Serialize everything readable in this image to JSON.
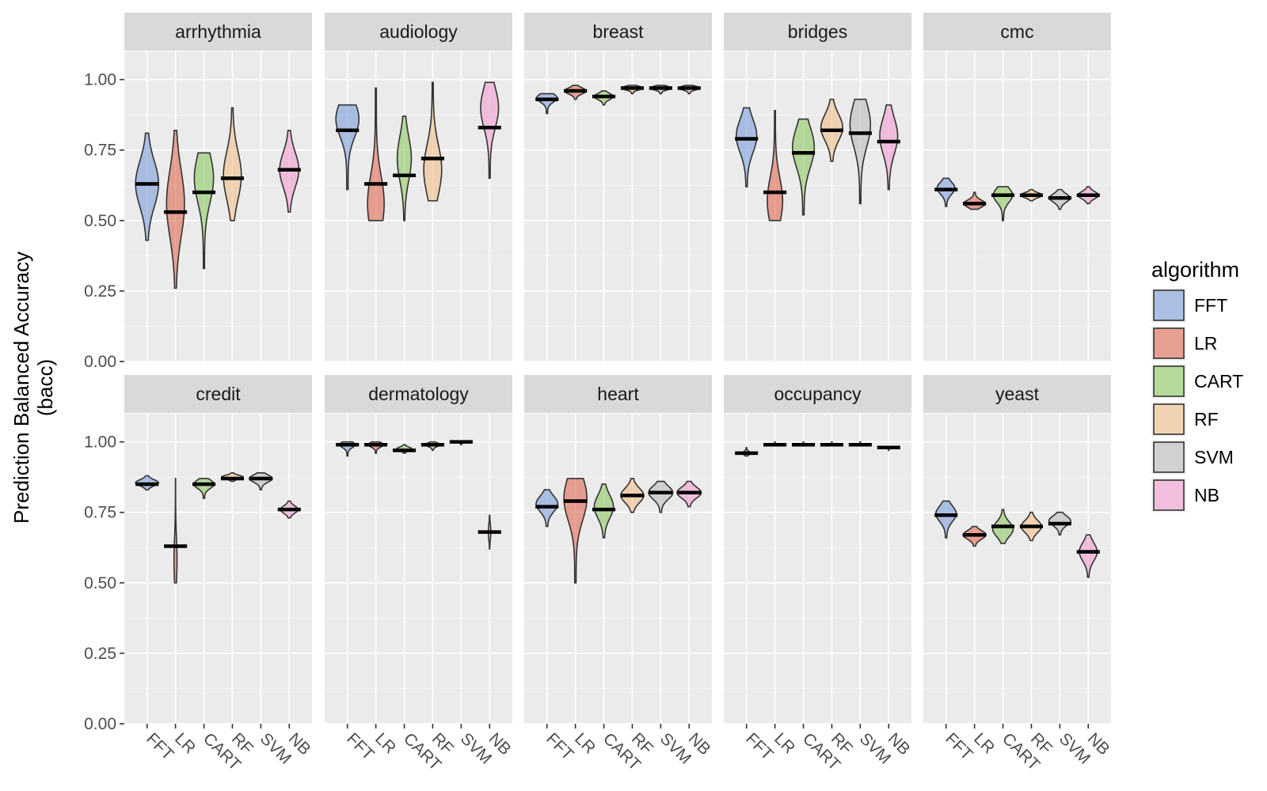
{
  "chart_data": {
    "type": "violin",
    "ylabel_line1": "Prediction Balanced Accuracy",
    "ylabel_line2": "(bacc)",
    "ylim": [
      0,
      1.1
    ],
    "yticks": [
      "0.00",
      "0.25",
      "0.50",
      "0.75",
      "1.00"
    ],
    "ytick_values": [
      0,
      0.25,
      0.5,
      0.75,
      1.0
    ],
    "categories": [
      "FFT",
      "LR",
      "CART",
      "RF",
      "SVM",
      "NB"
    ],
    "legend": {
      "title": "algorithm",
      "entries": [
        "FFT",
        "LR",
        "CART",
        "RF",
        "SVM",
        "NB"
      ],
      "colors": [
        "#7f9fdc",
        "#e06c55",
        "#8fc964",
        "#f0c08e",
        "#bdbdbd",
        "#f0a0d0"
      ]
    },
    "panels": [
      {
        "title": "arrhythmia",
        "series": [
          {
            "algorithm": "FFT",
            "min": 0.43,
            "max": 0.81,
            "median": 0.63,
            "peak": 0.63,
            "width": 0.9
          },
          {
            "algorithm": "LR",
            "min": 0.26,
            "max": 0.82,
            "median": 0.53,
            "peak": 0.56,
            "width": 0.7
          },
          {
            "algorithm": "CART",
            "min": 0.33,
            "max": 0.74,
            "median": 0.6,
            "peak": 0.65,
            "width": 0.75
          },
          {
            "algorithm": "RF",
            "min": 0.5,
            "max": 0.9,
            "median": 0.65,
            "peak": 0.66,
            "width": 0.7
          },
          {
            "algorithm": "NB",
            "min": 0.53,
            "max": 0.82,
            "median": 0.68,
            "peak": 0.68,
            "width": 0.75
          }
        ]
      },
      {
        "title": "audiology",
        "series": [
          {
            "algorithm": "FFT",
            "min": 0.61,
            "max": 0.91,
            "median": 0.82,
            "peak": 0.86,
            "width": 0.9
          },
          {
            "algorithm": "LR",
            "min": 0.5,
            "max": 0.97,
            "median": 0.63,
            "peak": 0.56,
            "width": 0.65
          },
          {
            "algorithm": "CART",
            "min": 0.5,
            "max": 0.87,
            "median": 0.66,
            "peak": 0.72,
            "width": 0.55
          },
          {
            "algorithm": "RF",
            "min": 0.57,
            "max": 0.99,
            "median": 0.72,
            "peak": 0.68,
            "width": 0.7
          },
          {
            "algorithm": "NB",
            "min": 0.65,
            "max": 0.99,
            "median": 0.83,
            "peak": 0.9,
            "width": 0.7
          }
        ]
      },
      {
        "title": "breast",
        "series": [
          {
            "algorithm": "FFT",
            "min": 0.88,
            "max": 0.95,
            "median": 0.93,
            "peak": 0.935,
            "width": 0.8
          },
          {
            "algorithm": "LR",
            "min": 0.93,
            "max": 0.98,
            "median": 0.96,
            "peak": 0.96,
            "width": 0.85
          },
          {
            "algorithm": "CART",
            "min": 0.91,
            "max": 0.96,
            "median": 0.94,
            "peak": 0.94,
            "width": 0.75
          },
          {
            "algorithm": "RF",
            "min": 0.95,
            "max": 0.98,
            "median": 0.97,
            "peak": 0.97,
            "width": 0.85
          },
          {
            "algorithm": "SVM",
            "min": 0.95,
            "max": 0.98,
            "median": 0.97,
            "peak": 0.97,
            "width": 0.85
          },
          {
            "algorithm": "NB",
            "min": 0.95,
            "max": 0.98,
            "median": 0.97,
            "peak": 0.97,
            "width": 0.85
          }
        ]
      },
      {
        "title": "bridges",
        "series": [
          {
            "algorithm": "FFT",
            "min": 0.62,
            "max": 0.9,
            "median": 0.79,
            "peak": 0.8,
            "width": 0.8
          },
          {
            "algorithm": "LR",
            "min": 0.5,
            "max": 0.89,
            "median": 0.6,
            "peak": 0.57,
            "width": 0.6
          },
          {
            "algorithm": "CART",
            "min": 0.52,
            "max": 0.86,
            "median": 0.74,
            "peak": 0.76,
            "width": 0.85
          },
          {
            "algorithm": "RF",
            "min": 0.71,
            "max": 0.93,
            "median": 0.82,
            "peak": 0.83,
            "width": 0.85
          },
          {
            "algorithm": "SVM",
            "min": 0.56,
            "max": 0.93,
            "median": 0.81,
            "peak": 0.84,
            "width": 0.8
          },
          {
            "algorithm": "NB",
            "min": 0.61,
            "max": 0.91,
            "median": 0.78,
            "peak": 0.8,
            "width": 0.7
          }
        ]
      },
      {
        "title": "cmc",
        "series": [
          {
            "algorithm": "FFT",
            "min": 0.55,
            "max": 0.65,
            "median": 0.61,
            "peak": 0.615,
            "width": 0.7
          },
          {
            "algorithm": "LR",
            "min": 0.54,
            "max": 0.6,
            "median": 0.56,
            "peak": 0.56,
            "width": 0.85
          },
          {
            "algorithm": "CART",
            "min": 0.5,
            "max": 0.62,
            "median": 0.59,
            "peak": 0.59,
            "width": 0.75
          },
          {
            "algorithm": "RF",
            "min": 0.57,
            "max": 0.61,
            "median": 0.59,
            "peak": 0.59,
            "width": 0.85
          },
          {
            "algorithm": "SVM",
            "min": 0.54,
            "max": 0.61,
            "median": 0.58,
            "peak": 0.58,
            "width": 0.8
          },
          {
            "algorithm": "NB",
            "min": 0.56,
            "max": 0.62,
            "median": 0.59,
            "peak": 0.59,
            "width": 0.8
          }
        ]
      },
      {
        "title": "credit",
        "series": [
          {
            "algorithm": "FFT",
            "min": 0.83,
            "max": 0.88,
            "median": 0.85,
            "peak": 0.855,
            "width": 0.9
          },
          {
            "algorithm": "LR",
            "min": 0.5,
            "max": 0.87,
            "median": 0.63,
            "peak": 0.58,
            "width": 0.12
          },
          {
            "algorithm": "CART",
            "min": 0.8,
            "max": 0.87,
            "median": 0.85,
            "peak": 0.85,
            "width": 0.8
          },
          {
            "algorithm": "RF",
            "min": 0.86,
            "max": 0.89,
            "median": 0.87,
            "peak": 0.875,
            "width": 0.85
          },
          {
            "algorithm": "SVM",
            "min": 0.83,
            "max": 0.89,
            "median": 0.87,
            "peak": 0.87,
            "width": 0.9
          },
          {
            "algorithm": "NB",
            "min": 0.73,
            "max": 0.79,
            "median": 0.76,
            "peak": 0.76,
            "width": 0.7
          }
        ]
      },
      {
        "title": "dermatology",
        "series": [
          {
            "algorithm": "FFT",
            "min": 0.95,
            "max": 1.0,
            "median": 0.99,
            "peak": 0.99,
            "width": 0.6
          },
          {
            "algorithm": "LR",
            "min": 0.96,
            "max": 1.0,
            "median": 0.99,
            "peak": 0.99,
            "width": 0.6
          },
          {
            "algorithm": "CART",
            "min": 0.96,
            "max": 0.99,
            "median": 0.97,
            "peak": 0.975,
            "width": 0.6
          },
          {
            "algorithm": "RF",
            "min": 0.97,
            "max": 1.0,
            "median": 0.99,
            "peak": 0.99,
            "width": 0.6
          },
          {
            "algorithm": "SVM",
            "min": 0.99,
            "max": 1.0,
            "median": 1.0,
            "peak": 1.0,
            "width": 0.6
          },
          {
            "algorithm": "NB",
            "min": 0.62,
            "max": 0.74,
            "median": 0.68,
            "peak": 0.68,
            "width": 0.1
          }
        ]
      },
      {
        "title": "heart",
        "series": [
          {
            "algorithm": "FFT",
            "min": 0.7,
            "max": 0.83,
            "median": 0.77,
            "peak": 0.78,
            "width": 0.85
          },
          {
            "algorithm": "LR",
            "min": 0.5,
            "max": 0.87,
            "median": 0.79,
            "peak": 0.8,
            "width": 0.9
          },
          {
            "algorithm": "CART",
            "min": 0.66,
            "max": 0.85,
            "median": 0.76,
            "peak": 0.77,
            "width": 0.75
          },
          {
            "algorithm": "RF",
            "min": 0.75,
            "max": 0.87,
            "median": 0.81,
            "peak": 0.81,
            "width": 0.9
          },
          {
            "algorithm": "SVM",
            "min": 0.75,
            "max": 0.86,
            "median": 0.82,
            "peak": 0.82,
            "width": 0.95
          },
          {
            "algorithm": "NB",
            "min": 0.77,
            "max": 0.86,
            "median": 0.82,
            "peak": 0.82,
            "width": 0.95
          }
        ]
      },
      {
        "title": "occupancy",
        "series": [
          {
            "algorithm": "FFT",
            "min": 0.95,
            "max": 0.98,
            "median": 0.96,
            "peak": 0.96,
            "width": 0.3
          },
          {
            "algorithm": "LR",
            "min": 0.99,
            "max": 1.0,
            "median": 0.99,
            "peak": 0.99,
            "width": 0.3
          },
          {
            "algorithm": "CART",
            "min": 0.99,
            "max": 1.0,
            "median": 0.99,
            "peak": 0.99,
            "width": 0.3
          },
          {
            "algorithm": "RF",
            "min": 0.99,
            "max": 1.0,
            "median": 0.99,
            "peak": 0.99,
            "width": 0.3
          },
          {
            "algorithm": "SVM",
            "min": 0.99,
            "max": 1.0,
            "median": 0.99,
            "peak": 0.99,
            "width": 0.3
          },
          {
            "algorithm": "NB",
            "min": 0.97,
            "max": 0.98,
            "median": 0.98,
            "peak": 0.98,
            "width": 0.3
          }
        ]
      },
      {
        "title": "yeast",
        "series": [
          {
            "algorithm": "FFT",
            "min": 0.66,
            "max": 0.79,
            "median": 0.74,
            "peak": 0.745,
            "width": 0.8
          },
          {
            "algorithm": "LR",
            "min": 0.63,
            "max": 0.7,
            "median": 0.67,
            "peak": 0.67,
            "width": 0.9
          },
          {
            "algorithm": "CART",
            "min": 0.64,
            "max": 0.76,
            "median": 0.7,
            "peak": 0.69,
            "width": 0.8
          },
          {
            "algorithm": "RF",
            "min": 0.65,
            "max": 0.75,
            "median": 0.7,
            "peak": 0.7,
            "width": 0.8
          },
          {
            "algorithm": "SVM",
            "min": 0.67,
            "max": 0.75,
            "median": 0.71,
            "peak": 0.72,
            "width": 0.85
          },
          {
            "algorithm": "NB",
            "min": 0.52,
            "max": 0.67,
            "median": 0.61,
            "peak": 0.61,
            "width": 0.7
          }
        ]
      }
    ]
  }
}
